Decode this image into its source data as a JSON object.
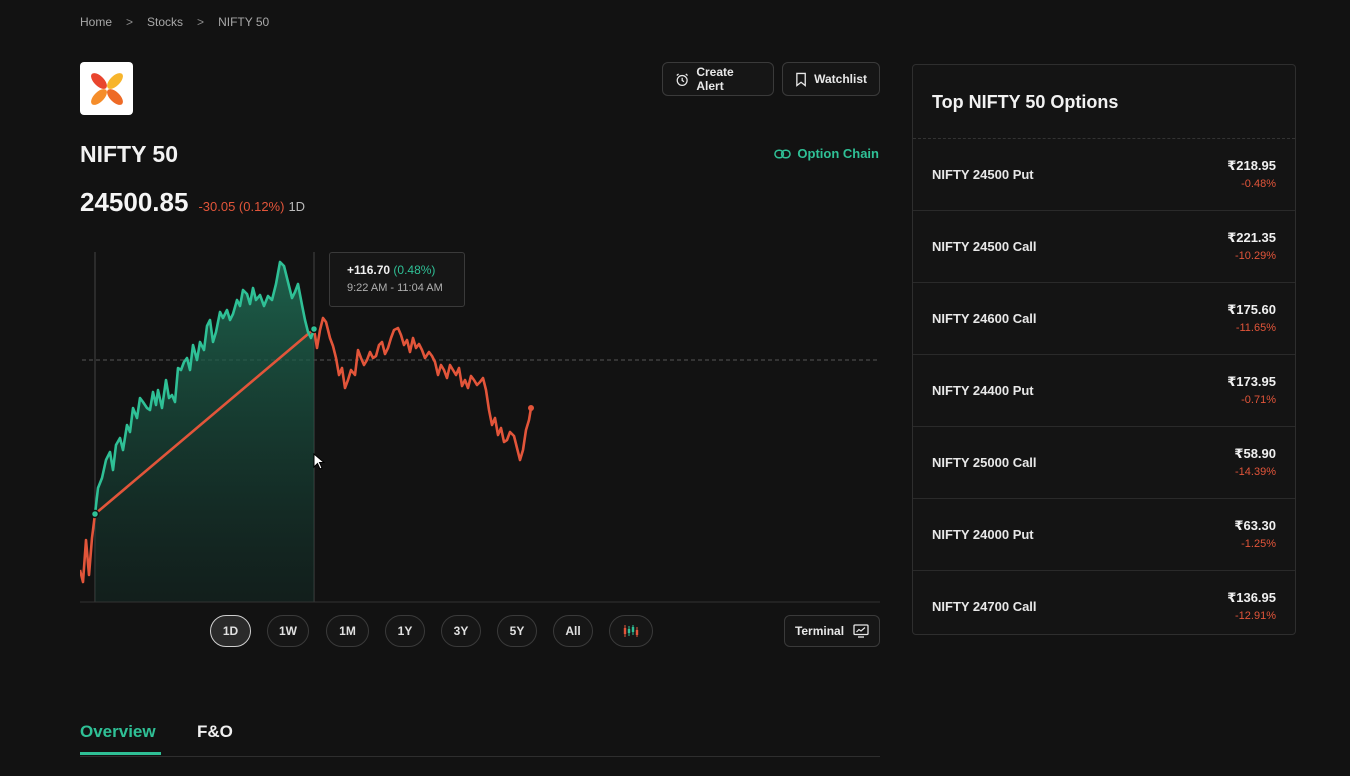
{
  "breadcrumb": {
    "home": "Home",
    "sep1": ">",
    "stocks": "Stocks",
    "sep2": ">",
    "current": "NIFTY 50"
  },
  "actions": {
    "create_alert": "Create Alert",
    "watchlist": "Watchlist",
    "option_chain": "Option Chain"
  },
  "instrument": {
    "name": "NIFTY 50",
    "price": "24500.85",
    "change": "-30.05 (0.12%)",
    "period": "1D"
  },
  "tooltip": {
    "change": "+116.70",
    "percent": "(0.48%)",
    "time_range": "9:22 AM - 11:04 AM"
  },
  "ranges": [
    "1D",
    "1W",
    "1M",
    "1Y",
    "3Y",
    "5Y",
    "All"
  ],
  "active_range": "1D",
  "terminal_label": "Terminal",
  "tabs": {
    "overview": "Overview",
    "fo": "F&O"
  },
  "colors": {
    "up": "#2fc096",
    "down": "#e2553a",
    "background": "#121212"
  },
  "top_options": {
    "title": "Top NIFTY 50 Options",
    "items": [
      {
        "name": "NIFTY 24500 Put",
        "price": "₹218.95",
        "change": "-0.48%"
      },
      {
        "name": "NIFTY 24500 Call",
        "price": "₹221.35",
        "change": "-10.29%"
      },
      {
        "name": "NIFTY 24600 Call",
        "price": "₹175.60",
        "change": "-11.65%"
      },
      {
        "name": "NIFTY 24400 Put",
        "price": "₹173.95",
        "change": "-0.71%"
      },
      {
        "name": "NIFTY 25000 Call",
        "price": "₹58.90",
        "change": "-14.39%"
      },
      {
        "name": "NIFTY 24000 Put",
        "price": "₹63.30",
        "change": "-1.25%"
      },
      {
        "name": "NIFTY 24700 Call",
        "price": "₹136.95",
        "change": "-12.91%"
      }
    ]
  }
}
